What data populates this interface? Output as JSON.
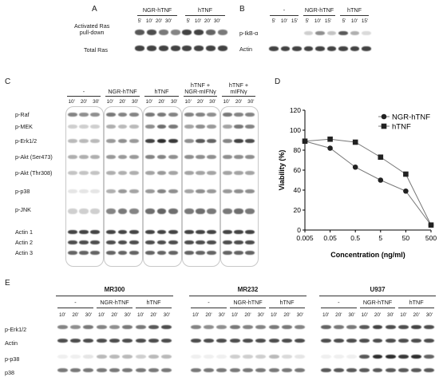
{
  "panels": {
    "A": {
      "letter": "A",
      "row_labels": [
        "Activated Ras pull-down",
        "Total Ras"
      ],
      "row_label_lines": [
        "Activated Ras",
        "pull-down"
      ],
      "groups": [
        "NGR-hTNF",
        "hTNF"
      ],
      "times": [
        "5'",
        "10'",
        "20'",
        "30'",
        "5'",
        "10'",
        "20'",
        "30'"
      ]
    },
    "B": {
      "letter": "B",
      "row_labels": [
        "p-IkB-α",
        "Actin"
      ],
      "groups": [
        "-",
        "NGR-hTNF",
        "hTNF"
      ],
      "times": [
        "5'",
        "10'",
        "15'",
        "5'",
        "10'",
        "15'",
        "5'",
        "10'",
        "15'"
      ]
    },
    "C": {
      "letter": "C",
      "groups": [
        "-",
        "NGR-hTNF",
        "hTNF",
        "hTNF + NGR-mIFNγ",
        "hTNF + mIFNγ"
      ],
      "group_lines": [
        [
          "-"
        ],
        [
          "NGR-hTNF"
        ],
        [
          "hTNF"
        ],
        [
          "hTNF +",
          "NGR-mIFNγ"
        ],
        [
          "hTNF +",
          "mIFNγ"
        ]
      ],
      "times": [
        "10'",
        "20'",
        "30'"
      ],
      "row_labels": [
        "p-Raf",
        "p-MEK",
        "p-Erk1/2",
        "p-Akt (Ser473)",
        "p-Akt (Thr308)",
        "p-p38",
        "p-JNK",
        "Actin 1",
        "Actin 2",
        "Actin 3"
      ]
    },
    "D": {
      "letter": "D"
    },
    "E": {
      "letter": "E",
      "cell_lines": [
        "MR300",
        "MR232",
        "U937"
      ],
      "groups": [
        "-",
        "NGR-hTNF",
        "hTNF"
      ],
      "times": [
        "10'",
        "20'",
        "30'"
      ],
      "row_labels": [
        "p-Erk1/2",
        "Actin",
        "p-p38",
        "p38"
      ]
    }
  },
  "chart_data": {
    "type": "line",
    "xlabel": "Concentration (ng/ml)",
    "ylabel": "Viability (%)",
    "x_scale": "log",
    "categories": [
      "0.005",
      "0.05",
      "0.5",
      "5",
      "50",
      "500"
    ],
    "ylim": [
      0,
      120
    ],
    "yticks": [
      "0",
      "20",
      "40",
      "60",
      "80",
      "100",
      "120"
    ],
    "legend_position": "top-right",
    "grid": false,
    "series": [
      {
        "name": "NGR-hTNF",
        "marker": "circle",
        "color": "#222222",
        "x": [
          0.005,
          0.05,
          0.5,
          5,
          50,
          500
        ],
        "values": [
          89,
          82,
          63,
          50,
          39,
          5
        ]
      },
      {
        "name": "hTNF",
        "marker": "square",
        "color": "#222222",
        "x": [
          0.005,
          0.05,
          0.5,
          5,
          50,
          500
        ],
        "values": [
          89,
          91,
          88,
          73,
          56,
          5
        ]
      }
    ]
  }
}
